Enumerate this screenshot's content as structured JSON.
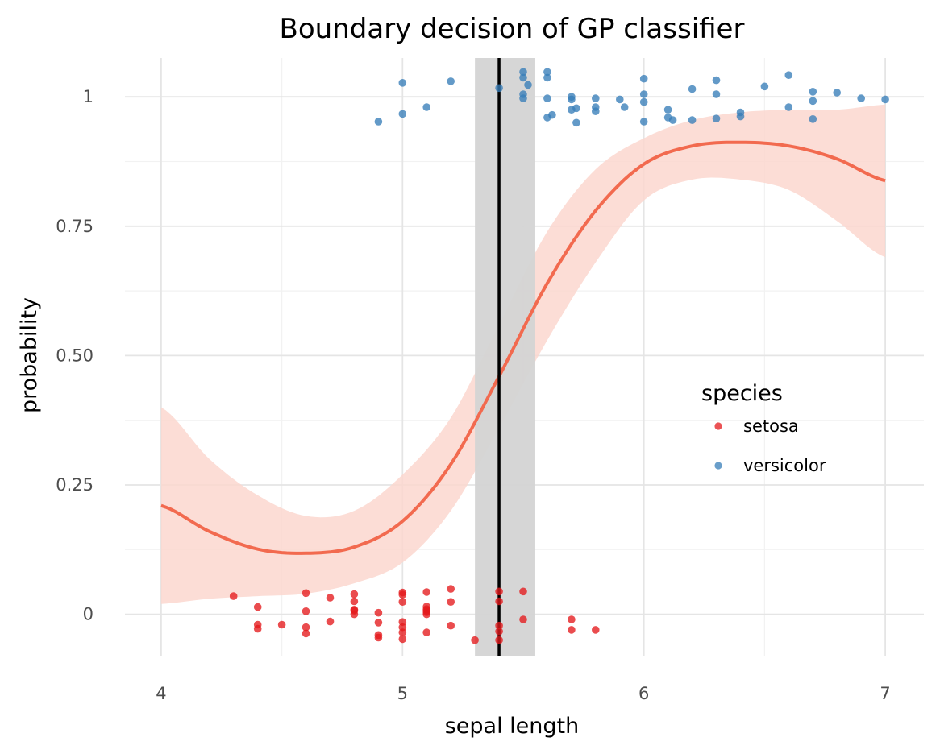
{
  "chart_data": {
    "type": "scatter",
    "title": "Boundary decision of GP classifier",
    "xlabel": "sepal length",
    "ylabel": "probability",
    "xlim": [
      3.85,
      7.16
    ],
    "ylim": [
      -0.08,
      1.075
    ],
    "x_ticks": [
      4,
      5,
      6,
      7
    ],
    "x_tick_labels": [
      "4",
      "5",
      "6",
      "7"
    ],
    "y_ticks": [
      0,
      0.25,
      0.5,
      0.75,
      1
    ],
    "y_tick_labels": [
      "0",
      "0.25",
      "0.50",
      "0.75",
      "1"
    ],
    "grid": true,
    "legend": {
      "title": "species",
      "position": "right, inside plot",
      "entries": [
        "setosa",
        "versicolor"
      ]
    },
    "colors": {
      "setosa": "#e41a1c",
      "versicolor": "#377eb8",
      "curve": "#f26a4f",
      "ribbon": "#fcd7cf",
      "boundary_band": "#d4d4d4",
      "boundary_line": "#000000"
    },
    "boundary": {
      "x": 5.4,
      "band": [
        5.3,
        5.55
      ]
    },
    "curve": {
      "x": [
        4.0,
        4.2,
        4.4,
        4.6,
        4.8,
        5.0,
        5.2,
        5.4,
        5.6,
        5.8,
        6.0,
        6.2,
        6.4,
        6.6,
        6.8,
        7.0
      ],
      "y": [
        0.21,
        0.16,
        0.126,
        0.118,
        0.13,
        0.18,
        0.29,
        0.46,
        0.64,
        0.78,
        0.87,
        0.905,
        0.912,
        0.905,
        0.88,
        0.838
      ],
      "lower": [
        0.02,
        0.03,
        0.035,
        0.04,
        0.06,
        0.1,
        0.2,
        0.36,
        0.53,
        0.68,
        0.8,
        0.84,
        0.84,
        0.82,
        0.76,
        0.69
      ],
      "upper": [
        0.4,
        0.3,
        0.23,
        0.19,
        0.2,
        0.27,
        0.38,
        0.56,
        0.74,
        0.86,
        0.92,
        0.955,
        0.97,
        0.975,
        0.975,
        0.985
      ]
    },
    "series": [
      {
        "name": "setosa",
        "points": [
          [
            4.3,
            0.035
          ],
          [
            4.4,
            0.014
          ],
          [
            4.4,
            -0.02
          ],
          [
            4.4,
            -0.028
          ],
          [
            4.5,
            -0.02
          ],
          [
            4.6,
            0.041
          ],
          [
            4.6,
            -0.025
          ],
          [
            4.6,
            -0.037
          ],
          [
            4.6,
            0.006
          ],
          [
            4.7,
            0.032
          ],
          [
            4.7,
            -0.014
          ],
          [
            4.8,
            0.039
          ],
          [
            4.8,
            0.025
          ],
          [
            4.8,
            0.009
          ],
          [
            4.8,
            0.007
          ],
          [
            4.8,
            0.0
          ],
          [
            4.9,
            0.003
          ],
          [
            4.9,
            -0.016
          ],
          [
            4.9,
            -0.04
          ],
          [
            4.9,
            -0.045
          ],
          [
            5.0,
            0.042
          ],
          [
            5.0,
            0.038
          ],
          [
            5.0,
            0.024
          ],
          [
            5.0,
            -0.015
          ],
          [
            5.0,
            -0.025
          ],
          [
            5.0,
            -0.035
          ],
          [
            5.0,
            -0.048
          ],
          [
            5.1,
            0.043
          ],
          [
            5.1,
            0.015
          ],
          [
            5.1,
            0.01
          ],
          [
            5.1,
            0.007
          ],
          [
            5.1,
            0.004
          ],
          [
            5.1,
            0.0
          ],
          [
            5.1,
            -0.035
          ],
          [
            5.2,
            0.049
          ],
          [
            5.2,
            0.024
          ],
          [
            5.2,
            -0.022
          ],
          [
            5.3,
            -0.05
          ],
          [
            5.4,
            0.044
          ],
          [
            5.4,
            0.025
          ],
          [
            5.4,
            -0.022
          ],
          [
            5.4,
            -0.033
          ],
          [
            5.4,
            -0.05
          ],
          [
            5.5,
            0.044
          ],
          [
            5.5,
            -0.01
          ],
          [
            5.7,
            -0.01
          ],
          [
            5.7,
            -0.03
          ],
          [
            5.8,
            -0.03
          ]
        ]
      },
      {
        "name": "versicolor",
        "points": [
          [
            4.9,
            0.952
          ],
          [
            5.0,
            1.027
          ],
          [
            5.0,
            0.967
          ],
          [
            5.1,
            0.98
          ],
          [
            5.2,
            1.03
          ],
          [
            5.4,
            1.017
          ],
          [
            5.5,
            1.048
          ],
          [
            5.5,
            1.037
          ],
          [
            5.5,
            1.005
          ],
          [
            5.5,
            0.997
          ],
          [
            5.52,
            1.023
          ],
          [
            5.6,
            1.048
          ],
          [
            5.6,
            1.037
          ],
          [
            5.6,
            0.997
          ],
          [
            5.6,
            0.96
          ],
          [
            5.62,
            0.965
          ],
          [
            5.7,
            1.0
          ],
          [
            5.7,
            0.995
          ],
          [
            5.7,
            0.975
          ],
          [
            5.72,
            0.978
          ],
          [
            5.72,
            0.95
          ],
          [
            5.8,
            0.997
          ],
          [
            5.8,
            0.98
          ],
          [
            5.8,
            0.972
          ],
          [
            5.9,
            0.995
          ],
          [
            5.92,
            0.98
          ],
          [
            6.0,
            1.035
          ],
          [
            6.0,
            1.005
          ],
          [
            6.0,
            0.99
          ],
          [
            6.0,
            0.952
          ],
          [
            6.1,
            0.975
          ],
          [
            6.1,
            0.96
          ],
          [
            6.12,
            0.955
          ],
          [
            6.2,
            1.015
          ],
          [
            6.2,
            0.955
          ],
          [
            6.3,
            1.032
          ],
          [
            6.3,
            1.005
          ],
          [
            6.3,
            0.958
          ],
          [
            6.4,
            0.97
          ],
          [
            6.4,
            0.962
          ],
          [
            6.5,
            1.02
          ],
          [
            6.6,
            1.042
          ],
          [
            6.6,
            0.98
          ],
          [
            6.7,
            1.01
          ],
          [
            6.7,
            0.992
          ],
          [
            6.7,
            0.957
          ],
          [
            6.8,
            1.008
          ],
          [
            6.9,
            0.997
          ],
          [
            7.0,
            0.995
          ]
        ]
      }
    ]
  }
}
